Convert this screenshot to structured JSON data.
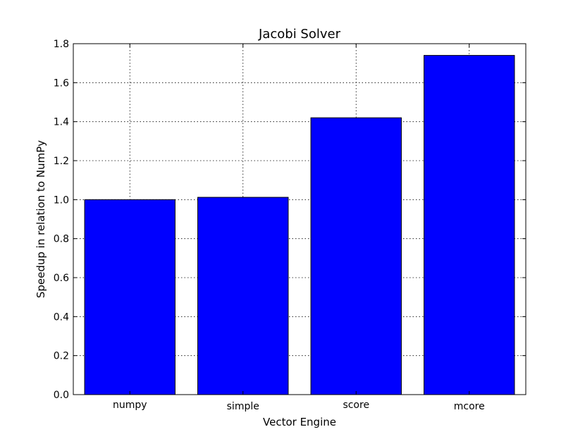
{
  "chart_data": {
    "type": "bar",
    "title": "Jacobi Solver",
    "xlabel": "Vector Engine",
    "ylabel": "Speedup in relation to NumPy",
    "categories": [
      "numpy",
      "simple",
      "score",
      "mcore"
    ],
    "values": [
      1.0,
      1.012,
      1.42,
      1.74
    ],
    "ylim": [
      0.0,
      1.8
    ],
    "yticks": [
      "0.0",
      "0.2",
      "0.4",
      "0.6",
      "0.8",
      "1.0",
      "1.2",
      "1.4",
      "1.6",
      "1.8"
    ],
    "grid": true,
    "bar_color": "#0000ff"
  }
}
